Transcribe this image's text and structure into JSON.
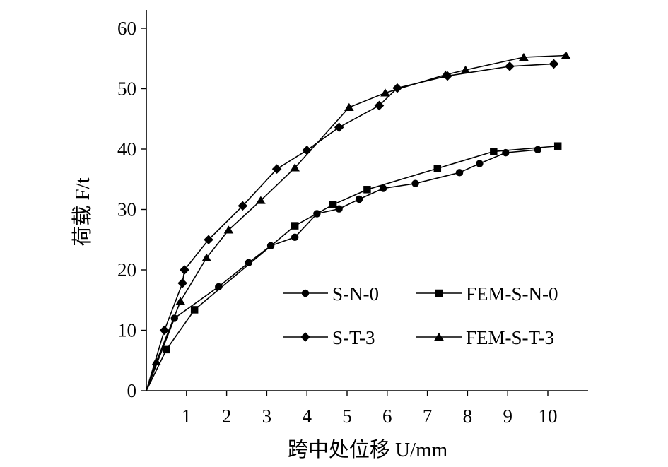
{
  "chart_data": {
    "type": "line",
    "xlabel": "跨中处位移 U/mm",
    "ylabel": "荷载 F/t",
    "xlim": [
      0,
      11
    ],
    "ylim": [
      0,
      60
    ],
    "xticks": [
      1,
      2,
      3,
      4,
      5,
      6,
      7,
      8,
      9,
      10
    ],
    "yticks": [
      0,
      10,
      20,
      30,
      40,
      50,
      60
    ],
    "grid": false,
    "legend": {
      "placement": "lower-right",
      "columns": 2
    },
    "series": [
      {
        "name": "S-N-0",
        "marker": "circle",
        "x": [
          0,
          0.7,
          1.8,
          2.55,
          3.1,
          3.7,
          4.25,
          4.8,
          5.3,
          5.9,
          6.7,
          7.8,
          8.3,
          8.95,
          9.75
        ],
        "y": [
          0,
          12,
          17.2,
          21.2,
          24,
          25.4,
          29.3,
          30.1,
          31.7,
          33.5,
          34.3,
          36.1,
          37.6,
          39.4,
          39.9
        ]
      },
      {
        "name": "FEM-S-N-0",
        "marker": "square",
        "x": [
          0,
          0.5,
          1.2,
          3.7,
          4.65,
          5.5,
          7.25,
          8.65,
          10.25
        ],
        "y": [
          0,
          6.8,
          13.4,
          27.3,
          30.8,
          33.3,
          36.8,
          39.6,
          40.5
        ]
      },
      {
        "name": "S-T-3",
        "marker": "diamond",
        "x": [
          0,
          0.45,
          0.9,
          0.95,
          1.55,
          2.4,
          3.25,
          4.0,
          4.8,
          5.8,
          6.25,
          7.5,
          9.05,
          10.15
        ],
        "y": [
          0,
          10,
          17.8,
          20,
          25,
          30.6,
          36.7,
          39.8,
          43.6,
          47.2,
          50.1,
          52.1,
          53.7,
          54.1
        ]
      },
      {
        "name": "FEM-S-T-3",
        "marker": "triangle",
        "x": [
          0,
          0.25,
          0.85,
          1.5,
          2.05,
          2.85,
          3.7,
          5.05,
          5.95,
          7.45,
          7.95,
          9.4,
          10.45
        ],
        "y": [
          0,
          4.8,
          14.8,
          22,
          26.6,
          31.5,
          36.9,
          46.9,
          49.3,
          52.3,
          53.1,
          55.2,
          55.5
        ]
      }
    ]
  }
}
